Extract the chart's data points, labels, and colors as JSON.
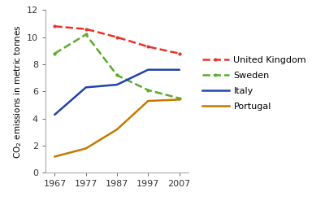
{
  "years": [
    1967,
    1977,
    1987,
    1997,
    2007
  ],
  "series": {
    "United Kingdom": [
      10.8,
      10.6,
      10.0,
      9.3,
      8.8
    ],
    "Sweden": [
      8.8,
      10.2,
      7.2,
      6.1,
      5.5
    ],
    "Italy": [
      4.3,
      6.3,
      6.5,
      7.6,
      7.6
    ],
    "Portugal": [
      1.2,
      1.8,
      3.2,
      5.3,
      5.4
    ]
  },
  "colors": {
    "United Kingdom": "#e8312a",
    "Sweden": "#5aab2e",
    "Italy": "#2244aa",
    "Portugal": "#c47a00"
  },
  "linestyles": {
    "United Kingdom": "--",
    "Sweden": "--",
    "Italy": "-",
    "Portugal": "-"
  },
  "markers": {
    "United Kingdom": ".",
    "Sweden": ".",
    "Italy": "None",
    "Portugal": "None"
  },
  "ylabel": "CO$_2$ emissions in metric tonnes",
  "ylim": [
    0,
    12
  ],
  "yticks": [
    0,
    2,
    4,
    6,
    8,
    10,
    12
  ],
  "xlim": [
    1964,
    2010
  ],
  "xticks": [
    1967,
    1977,
    1987,
    1997,
    2007
  ],
  "background_color": "#ffffff",
  "linewidth": 1.8,
  "markersize": 6
}
